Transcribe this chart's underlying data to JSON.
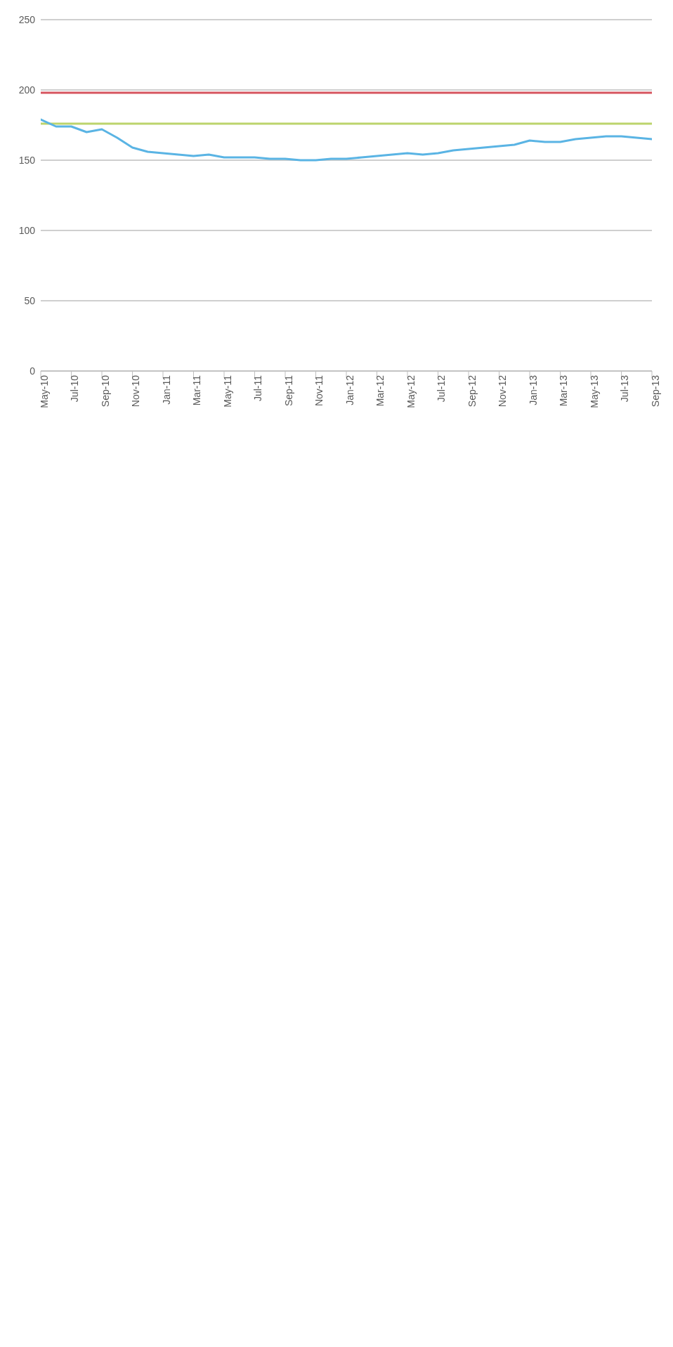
{
  "chart_data": {
    "type": "line",
    "categories": [
      "May-10",
      null,
      "Jul-10",
      null,
      "Sep-10",
      null,
      "Nov-10",
      null,
      "Jan-11",
      null,
      "Mar-11",
      null,
      "May-11",
      null,
      "Jul-11",
      null,
      "Sep-11",
      null,
      "Nov-11",
      null,
      "Jan-12",
      null,
      "Mar-12",
      null,
      "May-12",
      null,
      "Jul-12",
      null,
      "Sep-12",
      null,
      "Nov-12",
      null,
      "Jan-13",
      null,
      "Mar-13",
      null,
      "May-13",
      null,
      "Jul-13",
      null,
      "Sep-13"
    ],
    "series": [
      {
        "color": "#d6555f",
        "values": [
          198,
          198,
          198,
          198,
          198,
          198,
          198,
          198,
          198,
          198,
          198,
          198,
          198,
          198,
          198,
          198,
          198,
          198,
          198,
          198,
          198,
          198,
          198,
          198,
          198,
          198,
          198,
          198,
          198,
          198,
          198,
          198,
          198,
          198,
          198,
          198,
          198,
          198,
          198,
          198,
          198
        ]
      },
      {
        "color": "#bcd46c",
        "values": [
          176,
          176,
          176,
          176,
          176,
          176,
          176,
          176,
          176,
          176,
          176,
          176,
          176,
          176,
          176,
          176,
          176,
          176,
          176,
          176,
          176,
          176,
          176,
          176,
          176,
          176,
          176,
          176,
          176,
          176,
          176,
          176,
          176,
          176,
          176,
          176,
          176,
          176,
          176,
          176,
          176
        ]
      },
      {
        "color": "#5ab4e4",
        "values": [
          179,
          174,
          174,
          170,
          172,
          166,
          159,
          156,
          155,
          154,
          153,
          154,
          152,
          152,
          152,
          151,
          151,
          150,
          150,
          151,
          151,
          152,
          153,
          154,
          155,
          154,
          155,
          157,
          158,
          159,
          160,
          161,
          164,
          163,
          163,
          165,
          166,
          167,
          167,
          166,
          165
        ]
      }
    ],
    "ylim": [
      0,
      250
    ],
    "yticks": [
      0,
      50,
      100,
      150,
      200,
      250
    ],
    "grid": "y"
  }
}
